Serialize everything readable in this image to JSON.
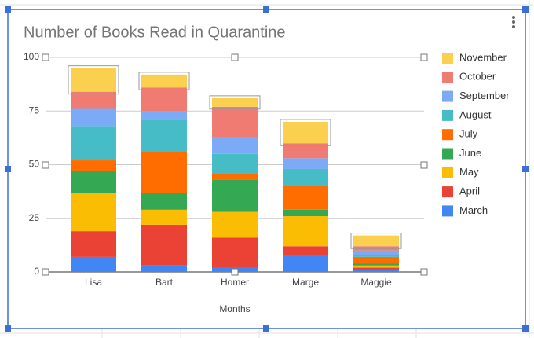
{
  "chart_data": {
    "type": "stacked_bar",
    "title": "Number of Books Read in Quarantine",
    "x_label": "Months",
    "categories": [
      "Lisa",
      "Bart",
      "Homer",
      "Marge",
      "Maggie"
    ],
    "series": [
      {
        "name": "March",
        "color": "#4285f4",
        "values": [
          7,
          3,
          2,
          8,
          1
        ]
      },
      {
        "name": "April",
        "color": "#ea4335",
        "values": [
          12,
          19,
          14,
          4,
          1
        ]
      },
      {
        "name": "May",
        "color": "#fbbc04",
        "values": [
          18,
          7,
          12,
          14,
          1
        ]
      },
      {
        "name": "June",
        "color": "#34a853",
        "values": [
          10,
          8,
          15,
          3,
          1
        ]
      },
      {
        "name": "July",
        "color": "#ff6d01",
        "values": [
          5,
          19,
          3,
          11,
          3
        ]
      },
      {
        "name": "August",
        "color": "#46bdc6",
        "values": [
          16,
          15,
          9,
          8,
          1
        ]
      },
      {
        "name": "September",
        "color": "#7baaf7",
        "values": [
          8,
          4,
          8,
          5,
          2
        ]
      },
      {
        "name": "October",
        "color": "#f07b72",
        "values": [
          8,
          11,
          14,
          7,
          2
        ]
      },
      {
        "name": "November",
        "color": "#fcd04f",
        "values": [
          11,
          6,
          4,
          10,
          5
        ]
      }
    ],
    "ylim": [
      0,
      100
    ],
    "yticks": [
      0,
      25,
      50,
      75,
      100
    ],
    "grid": true,
    "legend": "right"
  }
}
